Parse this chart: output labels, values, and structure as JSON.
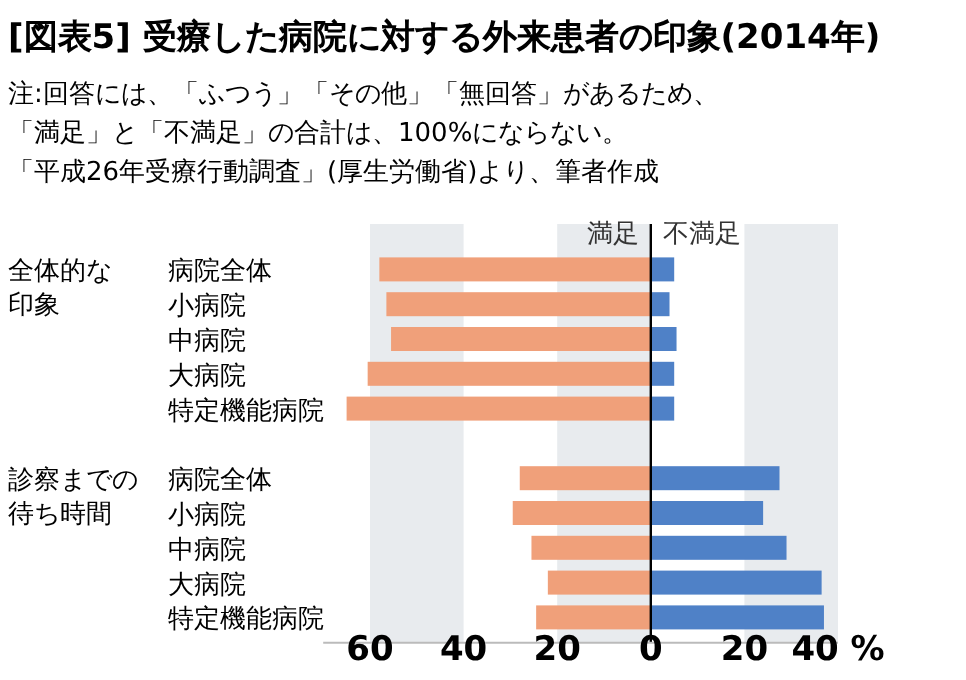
{
  "chart_data": {
    "type": "bar",
    "orientation": "horizontal",
    "stacked": true,
    "title": "[図表5] 受療した病院に対する外来患者の印象(2014年)",
    "annotations": [
      "注:回答には、「ふつう」「その他」「無回答」があるため、",
      "「満足」と「不満足」の合計は、100%にならない。",
      "「平成26年受療行動調査」(厚生労働省)より、筆者作成",
      "全体的な印象",
      "診察までの待ち時間"
    ],
    "categories": [
      "病院全体",
      "小病院",
      "中病院",
      "大病院",
      "特定機能病院",
      null,
      "病院全体",
      "小病院",
      "中病院",
      "大病院",
      "特定機能病院"
    ],
    "series": [
      {
        "name": "満足",
        "color": "#f0a07a",
        "values": [
          -58,
          -56.5,
          -55.5,
          -60.5,
          -65,
          null,
          -28,
          -29.5,
          -25.5,
          -22,
          -24.5
        ]
      },
      {
        "name": "不満足",
        "color": "#4f81c7",
        "values": [
          5,
          4,
          5.5,
          5,
          5,
          null,
          27.5,
          24,
          29,
          36.5,
          37
        ]
      }
    ],
    "xlim": [
      -70,
      40
    ],
    "xticks": [
      {
        "value": -60,
        "label": "60"
      },
      {
        "value": -40,
        "label": "40"
      },
      {
        "value": -20,
        "label": "20"
      },
      0,
      20,
      {
        "value": 40,
        "label": "40 %"
      }
    ],
    "grid": "x",
    "legend": "top"
  }
}
